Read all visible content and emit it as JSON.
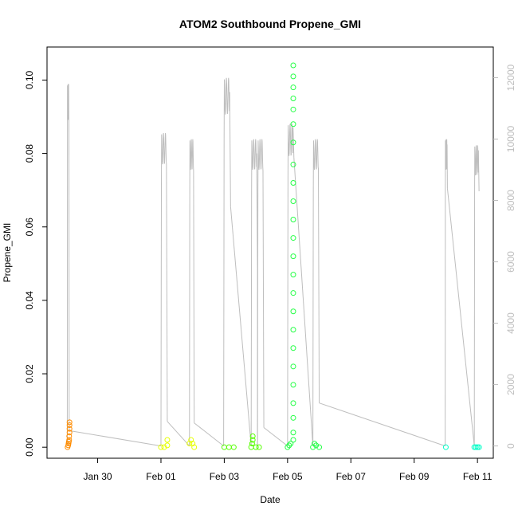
{
  "chart_data": {
    "type": "scatter",
    "title": "ATOM2 Southbound Propene_GMI",
    "xlabel": "Date",
    "ylabel": "Propene_GMI",
    "x_domain_days": [
      "Jan 28 12:00",
      "Feb 11 12:00"
    ],
    "xlim_days": [
      -1.6,
      12.5
    ],
    "ylim": [
      -0.003,
      0.109
    ],
    "y2lim": [
      -400,
      13000
    ],
    "x_ticks": [
      {
        "label": "Jan 30",
        "day": 0
      },
      {
        "label": "Feb 01",
        "day": 2
      },
      {
        "label": "Feb 03",
        "day": 4
      },
      {
        "label": "Feb 05",
        "day": 6
      },
      {
        "label": "Feb 07",
        "day": 8
      },
      {
        "label": "Feb 09",
        "day": 10
      },
      {
        "label": "Feb 11",
        "day": 12
      }
    ],
    "y_ticks": [
      "0.00",
      "0.02",
      "0.04",
      "0.06",
      "0.08",
      "0.10"
    ],
    "y2_ticks": [
      "0",
      "2000",
      "4000",
      "6000",
      "8000",
      "10000",
      "12000"
    ],
    "colors": {
      "orange": "#FF8C00",
      "yellow": "#E6FF00",
      "green": "#55FF00",
      "bright_green": "#22FF44",
      "cyan": "#00FFC8",
      "altitude": "#bebebe"
    },
    "altitude_flights": [
      {
        "start": -0.96,
        "end": -0.9,
        "peak": 11800,
        "end_alt": 500
      },
      {
        "start": 2.0,
        "end": 2.2,
        "peak": 10200,
        "end_alt": 800
      },
      {
        "start": 2.9,
        "end": 3.05,
        "peak": 10000,
        "end_alt": 750
      },
      {
        "start": 3.98,
        "end": 4.2,
        "peak": 12000,
        "end_alt": 7800
      },
      {
        "start": 4.85,
        "end": 5.05,
        "peak": 10000,
        "end_alt": 5800
      },
      {
        "start": 5.05,
        "end": 5.25,
        "peak": 10000,
        "end_alt": 600
      },
      {
        "start": 6.0,
        "end": 6.2,
        "peak": 10500,
        "end_alt": 9400
      },
      {
        "start": 6.8,
        "end": 7.0,
        "peak": 10000,
        "end_alt": 1400
      },
      {
        "start": 10.98,
        "end": 11.05,
        "peak": 10000,
        "end_alt": 8400
      },
      {
        "start": 11.9,
        "end": 12.05,
        "peak": 9800,
        "end_alt": 8300
      }
    ],
    "series": [
      {
        "color": "orange",
        "points": [
          {
            "x": -0.95,
            "y": 0.0
          },
          {
            "x": -0.93,
            "y": 0.0005
          },
          {
            "x": -0.92,
            "y": 0.001
          },
          {
            "x": -0.91,
            "y": 0.0015
          },
          {
            "x": -0.9,
            "y": 0.002
          },
          {
            "x": -0.9,
            "y": 0.003
          },
          {
            "x": -0.89,
            "y": 0.004
          },
          {
            "x": -0.89,
            "y": 0.005
          },
          {
            "x": -0.89,
            "y": 0.006
          },
          {
            "x": -0.89,
            "y": 0.0068
          }
        ]
      },
      {
        "color": "yellow",
        "points": [
          {
            "x": 2.0,
            "y": 0.0
          },
          {
            "x": 2.1,
            "y": 0.0
          },
          {
            "x": 2.2,
            "y": 0.0005
          },
          {
            "x": 2.2,
            "y": 0.002
          },
          {
            "x": 2.9,
            "y": 0.001
          },
          {
            "x": 2.95,
            "y": 0.002
          },
          {
            "x": 3.0,
            "y": 0.001
          },
          {
            "x": 3.05,
            "y": 0.0
          }
        ]
      },
      {
        "color": "green",
        "points": [
          {
            "x": 4.0,
            "y": 0.0
          },
          {
            "x": 4.15,
            "y": 0.0
          },
          {
            "x": 4.3,
            "y": 0.0
          },
          {
            "x": 4.85,
            "y": 0.0
          },
          {
            "x": 4.88,
            "y": 0.001
          },
          {
            "x": 4.9,
            "y": 0.002
          },
          {
            "x": 4.9,
            "y": 0.003
          },
          {
            "x": 5.0,
            "y": 0.0
          },
          {
            "x": 5.1,
            "y": 0.0
          }
        ]
      },
      {
        "color": "bright_green",
        "points": [
          {
            "x": 6.0,
            "y": 0.0
          },
          {
            "x": 6.05,
            "y": 0.0005
          },
          {
            "x": 6.1,
            "y": 0.001
          },
          {
            "x": 6.18,
            "y": 0.104
          },
          {
            "x": 6.18,
            "y": 0.101
          },
          {
            "x": 6.18,
            "y": 0.098
          },
          {
            "x": 6.18,
            "y": 0.095
          },
          {
            "x": 6.18,
            "y": 0.092
          },
          {
            "x": 6.18,
            "y": 0.088
          },
          {
            "x": 6.18,
            "y": 0.083
          },
          {
            "x": 6.18,
            "y": 0.077
          },
          {
            "x": 6.18,
            "y": 0.072
          },
          {
            "x": 6.18,
            "y": 0.067
          },
          {
            "x": 6.18,
            "y": 0.062
          },
          {
            "x": 6.18,
            "y": 0.057
          },
          {
            "x": 6.18,
            "y": 0.052
          },
          {
            "x": 6.18,
            "y": 0.047
          },
          {
            "x": 6.18,
            "y": 0.042
          },
          {
            "x": 6.18,
            "y": 0.037
          },
          {
            "x": 6.18,
            "y": 0.032
          },
          {
            "x": 6.18,
            "y": 0.027
          },
          {
            "x": 6.18,
            "y": 0.022
          },
          {
            "x": 6.18,
            "y": 0.017
          },
          {
            "x": 6.18,
            "y": 0.012
          },
          {
            "x": 6.18,
            "y": 0.008
          },
          {
            "x": 6.18,
            "y": 0.004
          },
          {
            "x": 6.18,
            "y": 0.002
          },
          {
            "x": 6.8,
            "y": 0.0
          },
          {
            "x": 6.85,
            "y": 0.001
          },
          {
            "x": 6.9,
            "y": 0.0005
          },
          {
            "x": 7.0,
            "y": 0.0
          }
        ]
      },
      {
        "color": "cyan",
        "points": [
          {
            "x": 11.0,
            "y": 0.0
          },
          {
            "x": 11.9,
            "y": 0.0
          },
          {
            "x": 11.95,
            "y": 0.0
          },
          {
            "x": 12.0,
            "y": 0.0
          },
          {
            "x": 12.05,
            "y": 0.0
          }
        ]
      }
    ]
  }
}
